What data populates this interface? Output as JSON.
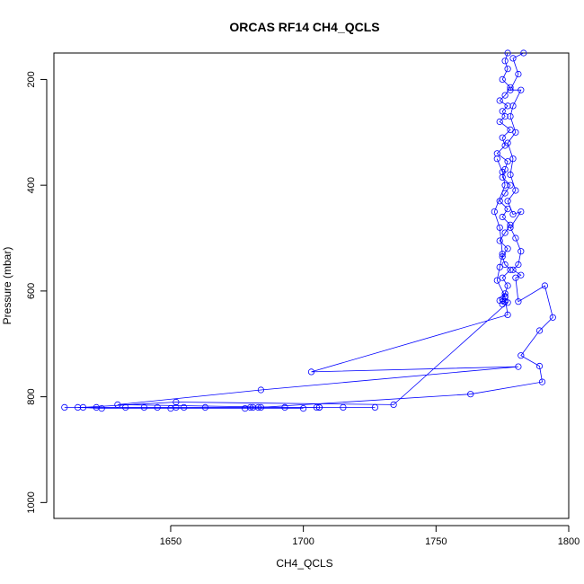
{
  "chart_data": {
    "type": "line",
    "title": "ORCAS RF14 CH4_QCLS",
    "xlabel": "CH4_QCLS",
    "ylabel": "Pressure (mbar)",
    "xlim": [
      1606,
      1800
    ],
    "ylim": [
      1030,
      150
    ],
    "y_reversed": true,
    "x_ticks": [
      1650,
      1700,
      1750,
      1800
    ],
    "y_ticks": [
      200,
      400,
      600,
      800,
      1000
    ],
    "marker": "open-circle",
    "grid": false,
    "series_color": "#0000ff",
    "series": [
      {
        "points": [
          [
            1777,
            150
          ],
          [
            1776,
            165
          ],
          [
            1777,
            180
          ],
          [
            1775,
            200
          ],
          [
            1778,
            215
          ],
          [
            1776,
            230
          ],
          [
            1774,
            240
          ],
          [
            1777,
            250
          ],
          [
            1775,
            260
          ],
          [
            1776,
            270
          ],
          [
            1774,
            280
          ],
          [
            1778,
            295
          ],
          [
            1775,
            310
          ],
          [
            1776,
            325
          ],
          [
            1773,
            340
          ],
          [
            1777,
            355
          ],
          [
            1776,
            370
          ],
          [
            1775,
            385
          ],
          [
            1778,
            400
          ],
          [
            1776,
            415
          ],
          [
            1774,
            430
          ],
          [
            1777,
            445
          ],
          [
            1775,
            460
          ],
          [
            1778,
            475
          ],
          [
            1776,
            490
          ],
          [
            1774,
            505
          ],
          [
            1777,
            520
          ],
          [
            1775,
            535
          ],
          [
            1776,
            550
          ],
          [
            1778,
            560
          ],
          [
            1775,
            575
          ],
          [
            1777,
            590
          ],
          [
            1776,
            605
          ],
          [
            1775,
            615
          ],
          [
            1776,
            620
          ],
          [
            1777,
            622
          ],
          [
            1734,
            815
          ],
          [
            1652,
            810
          ],
          [
            1617,
            820
          ],
          [
            1610,
            820
          ],
          [
            1655,
            820
          ],
          [
            1680,
            820
          ],
          [
            1706,
            820
          ],
          [
            1727,
            820
          ],
          [
            1622,
            820
          ],
          [
            1652,
            820
          ],
          [
            1645,
            820
          ],
          [
            1633,
            820
          ],
          [
            1683,
            820
          ],
          [
            1715,
            820
          ],
          [
            1706,
            820
          ],
          [
            1693,
            820
          ],
          [
            1630,
            815
          ],
          [
            1684,
            787
          ],
          [
            1781,
            743
          ],
          [
            1703,
            753
          ],
          [
            1777,
            645
          ],
          [
            1776,
            612
          ]
        ]
      },
      {
        "points": [
          [
            1783,
            150
          ],
          [
            1779,
            160
          ],
          [
            1781,
            190
          ],
          [
            1778,
            220
          ],
          [
            1782,
            220
          ],
          [
            1779,
            250
          ],
          [
            1778,
            270
          ],
          [
            1780,
            300
          ],
          [
            1777,
            320
          ],
          [
            1779,
            350
          ],
          [
            1778,
            380
          ],
          [
            1780,
            410
          ],
          [
            1777,
            430
          ],
          [
            1779,
            455
          ],
          [
            1782,
            450
          ],
          [
            1778,
            480
          ],
          [
            1780,
            500
          ],
          [
            1782,
            525
          ],
          [
            1781,
            550
          ],
          [
            1779,
            560
          ],
          [
            1782,
            570
          ],
          [
            1780,
            575
          ],
          [
            1781,
            620
          ],
          [
            1791,
            590
          ],
          [
            1794,
            650
          ],
          [
            1789,
            675
          ],
          [
            1782,
            722
          ],
          [
            1789,
            742
          ],
          [
            1790,
            772
          ],
          [
            1763,
            795
          ],
          [
            1684,
            820
          ],
          [
            1705,
            820
          ],
          [
            1681,
            820
          ],
          [
            1663,
            820
          ],
          [
            1640,
            820
          ],
          [
            1615,
            820
          ],
          [
            1624,
            822
          ],
          [
            1650,
            822
          ],
          [
            1678,
            822
          ],
          [
            1700,
            822
          ]
        ]
      },
      {
        "points": [
          [
            1773,
            350
          ],
          [
            1775,
            375
          ],
          [
            1776,
            400
          ],
          [
            1772,
            450
          ],
          [
            1774,
            480
          ],
          [
            1775,
            530
          ],
          [
            1774,
            555
          ],
          [
            1773,
            580
          ],
          [
            1776,
            610
          ],
          [
            1774,
            618
          ],
          [
            1775,
            625
          ],
          [
            1776,
            620
          ]
        ]
      }
    ]
  }
}
